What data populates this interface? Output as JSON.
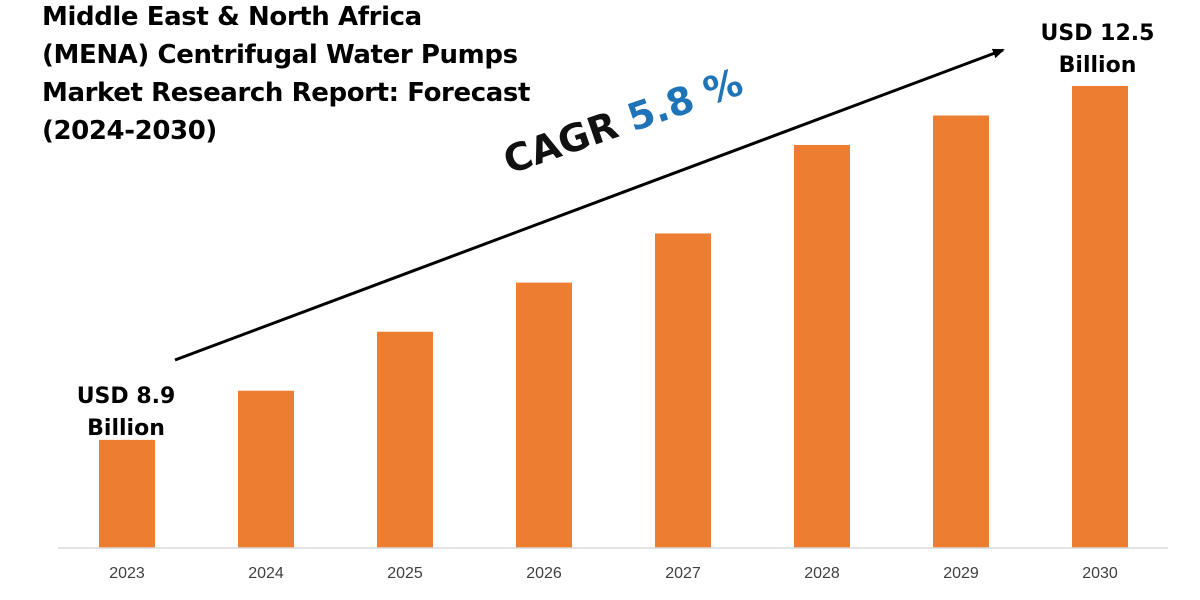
{
  "title_lines": [
    "Middle East & North Africa",
    "(MENA) Centrifugal Water Pumps",
    "Market Research Report: Forecast",
    "(2024-2030)"
  ],
  "cagr": {
    "label": "CAGR",
    "value": "5.8 %"
  },
  "start_callout": {
    "line1": "USD 8.9",
    "line2": "Billion"
  },
  "end_callout": {
    "line1": "USD 12.5",
    "line2": "Billion"
  },
  "colors": {
    "bar": "#ed7d31",
    "cagr_value": "#1f73b7",
    "axis": "#d9d9d9",
    "tick_text": "#404040"
  },
  "chart_data": {
    "type": "bar",
    "categories": [
      "2023",
      "2024",
      "2025",
      "2026",
      "2027",
      "2028",
      "2029",
      "2030"
    ],
    "values": [
      8.9,
      9.4,
      10.0,
      10.5,
      11.0,
      11.9,
      12.2,
      12.5
    ],
    "ylim": [
      7.8,
      12.5
    ],
    "unit": "USD Billion",
    "grid": false,
    "legend": "none"
  }
}
